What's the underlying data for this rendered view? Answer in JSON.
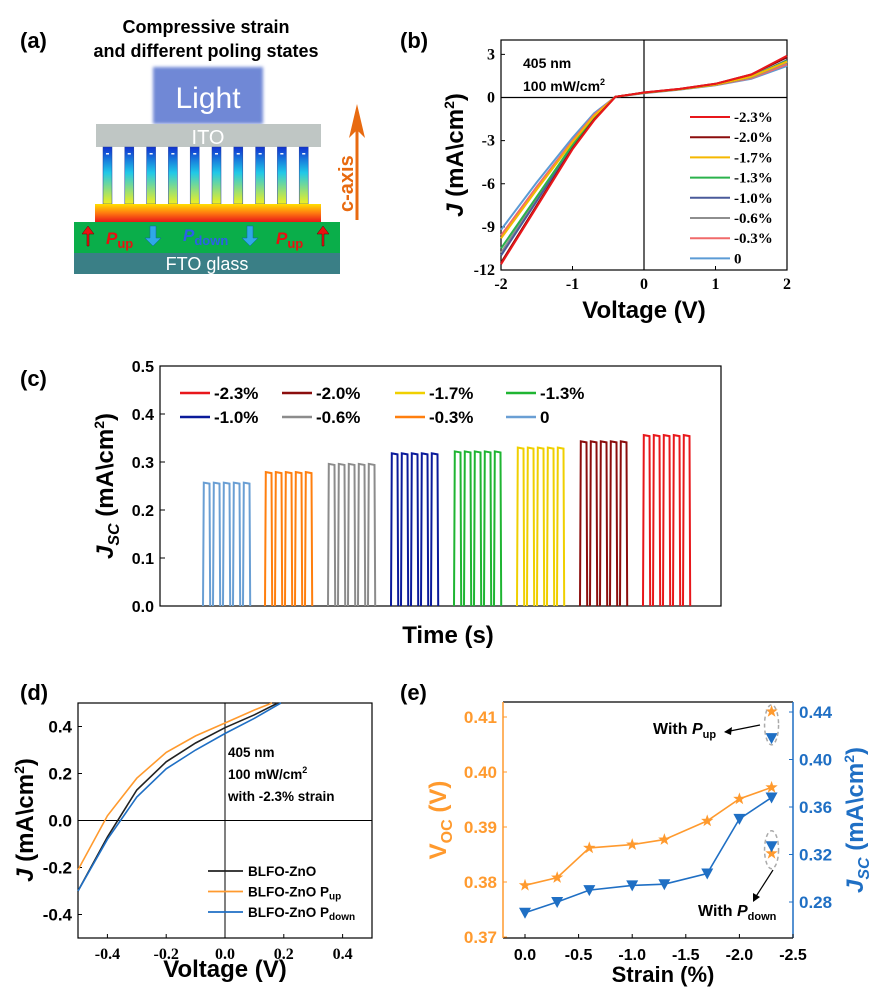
{
  "panel_labels": {
    "a": "(a)",
    "b": "(b)",
    "c": "(c)",
    "d": "(d)",
    "e": "(e)"
  },
  "diagram_a": {
    "title_line1": "Compressive strain",
    "title_line2": "and different poling states",
    "light": "Light",
    "ito": "ITO",
    "fto": "FTO glass",
    "caxis": "c-axis",
    "minus": "-",
    "plus": "+",
    "p": "P",
    "up": "up",
    "down": "down"
  },
  "chart_data": [
    {
      "id": "b",
      "type": "line",
      "xlabel": "Voltage (V)",
      "ylabel_main": "J",
      "ylabel_unit": " (mA\\cm",
      "ylabel_sup": "2",
      "ylabel_close": ")",
      "xlim": [
        -2,
        2
      ],
      "ylim": [
        -12,
        4
      ],
      "xticks": [
        -2,
        -1,
        0,
        1,
        2
      ],
      "yticks": [
        3,
        0,
        -3,
        -6,
        -9,
        -12
      ],
      "annotation": [
        "405 nm",
        "100 mW/cm",
        "2"
      ],
      "x": [
        -2,
        -1.5,
        -1,
        -0.7,
        -0.4,
        0,
        0.5,
        1,
        1.5,
        2
      ],
      "series": [
        {
          "name": "-2.3%",
          "color": "#e8171b",
          "values": [
            -11.6,
            -7.6,
            -3.6,
            -1.6,
            0.05,
            0.35,
            0.6,
            0.95,
            1.6,
            2.9
          ]
        },
        {
          "name": "-2.0%",
          "color": "#8b0d0d",
          "values": [
            -11.5,
            -7.5,
            -3.55,
            -1.55,
            0.05,
            0.35,
            0.6,
            0.95,
            1.6,
            2.8
          ]
        },
        {
          "name": "-1.7%",
          "color": "#f5b800",
          "values": [
            -9.8,
            -6.4,
            -3.1,
            -1.3,
            0.05,
            0.33,
            0.58,
            0.9,
            1.45,
            2.5
          ]
        },
        {
          "name": "-1.3%",
          "color": "#2bb24c",
          "values": [
            -10.5,
            -6.9,
            -3.3,
            -1.4,
            0.05,
            0.33,
            0.58,
            0.9,
            1.45,
            2.55
          ]
        },
        {
          "name": "-1.0%",
          "color": "#4a5a9a",
          "values": [
            -11.0,
            -7.2,
            -3.4,
            -1.45,
            0.05,
            0.33,
            0.58,
            0.9,
            1.45,
            2.6
          ]
        },
        {
          "name": "-0.6%",
          "color": "#8e8e8e",
          "values": [
            -10.8,
            -7.0,
            -3.35,
            -1.4,
            0.05,
            0.32,
            0.57,
            0.88,
            1.4,
            2.45
          ]
        },
        {
          "name": "-0.3%",
          "color": "#f06a6a",
          "values": [
            -9.6,
            -6.2,
            -3.0,
            -1.2,
            0.05,
            0.31,
            0.56,
            0.87,
            1.35,
            2.3
          ]
        },
        {
          "name": "0",
          "color": "#5b9bd5",
          "values": [
            -9.2,
            -5.9,
            -2.8,
            -1.1,
            0.05,
            0.3,
            0.55,
            0.85,
            1.3,
            2.2
          ]
        }
      ]
    },
    {
      "id": "c",
      "type": "line",
      "xlabel": "Time  (s)",
      "ylabel_main": "J",
      "ylabel_sub": "SC",
      "ylabel_unit": " (mA\\cm",
      "ylabel_sup": "2",
      "ylabel_close": ")",
      "ylim": [
        0,
        0.5
      ],
      "yticks": [
        0.0,
        0.1,
        0.2,
        0.3,
        0.4,
        0.5
      ],
      "pulses_per_group": 5,
      "legend": [
        {
          "name": "-2.3%",
          "color": "#e8171b"
        },
        {
          "name": "-2.0%",
          "color": "#8b0d0d"
        },
        {
          "name": "-1.7%",
          "color": "#f0d000"
        },
        {
          "name": "-1.3%",
          "color": "#1fb532"
        },
        {
          "name": "-1.0%",
          "color": "#0a1a9a"
        },
        {
          "name": "-0.6%",
          "color": "#8c8c8c"
        },
        {
          "name": "-0.3%",
          "color": "#ff7f0e"
        },
        {
          "name": "0",
          "color": "#6a9fd4"
        }
      ],
      "groups": [
        {
          "name": "0",
          "color": "#6a9fd4",
          "value": 0.257
        },
        {
          "name": "-0.3%",
          "color": "#ff7f0e",
          "value": 0.279
        },
        {
          "name": "-0.6%",
          "color": "#8c8c8c",
          "value": 0.296
        },
        {
          "name": "-1.0%",
          "color": "#0a1a9a",
          "value": 0.318
        },
        {
          "name": "-1.3%",
          "color": "#1fb532",
          "value": 0.322
        },
        {
          "name": "-1.7%",
          "color": "#f0d000",
          "value": 0.33
        },
        {
          "name": "-2.0%",
          "color": "#8b0d0d",
          "value": 0.343
        },
        {
          "name": "-2.3%",
          "color": "#e8171b",
          "value": 0.356
        }
      ]
    },
    {
      "id": "d",
      "type": "line",
      "xlabel": "Voltage (V)",
      "ylabel_main": "J",
      "ylabel_unit": " (mA\\cm",
      "ylabel_sup": "2",
      "ylabel_close": ")",
      "xlim": [
        -0.5,
        0.5
      ],
      "ylim": [
        -0.5,
        0.5
      ],
      "xticks": [
        -0.4,
        -0.2,
        0.0,
        0.2,
        0.4
      ],
      "yticks": [
        0.4,
        0.2,
        0.0,
        -0.2,
        -0.4
      ],
      "annotation": [
        "405 nm",
        "100 mW/cm",
        "2",
        "with -2.3% strain"
      ],
      "series": [
        {
          "name": "BLFO-ZnO",
          "sub": "",
          "color": "#222222",
          "x": [
            -0.5,
            -0.4,
            -0.3,
            -0.2,
            -0.1,
            0,
            0.1,
            0.18
          ],
          "values": [
            -0.3,
            -0.07,
            0.13,
            0.25,
            0.33,
            0.395,
            0.45,
            0.5
          ]
        },
        {
          "name": "BLFO-ZnO P",
          "sub": "up",
          "color": "#ff9a2e",
          "x": [
            -0.5,
            -0.4,
            -0.3,
            -0.2,
            -0.1,
            0,
            0.1,
            0.16
          ],
          "values": [
            -0.21,
            0.02,
            0.18,
            0.29,
            0.36,
            0.415,
            0.47,
            0.5
          ]
        },
        {
          "name": "BLFO-ZnO P",
          "sub": "down",
          "color": "#1f6fc4",
          "x": [
            -0.5,
            -0.4,
            -0.3,
            -0.2,
            -0.1,
            0,
            0.1,
            0.19
          ],
          "values": [
            -0.3,
            -0.08,
            0.1,
            0.22,
            0.3,
            0.37,
            0.435,
            0.5
          ]
        }
      ]
    },
    {
      "id": "e",
      "type": "line",
      "xlabel": "Strain (%)",
      "ylabel_left": "V",
      "ylabel_left_sub": "OC",
      "ylabel_left_unit": " (V)",
      "ylabel_right": "J",
      "ylabel_right_sub": "SC",
      "ylabel_right_unit": " (mA\\cm",
      "ylabel_right_sup": "2",
      "ylabel_right_close": ")",
      "xlim": [
        0.2,
        -2.5
      ],
      "ylim_left": [
        0.37,
        0.413
      ],
      "ylim_right": [
        0.26,
        0.445
      ],
      "xticks": [
        "0.0",
        "-0.5",
        "-1.0",
        "-1.5",
        "-2.0",
        "-2.5"
      ],
      "yticks_left": [
        "0.37",
        "0.38",
        "0.39",
        "0.40",
        "0.41"
      ],
      "yticks_right": [
        "0.28",
        "0.32",
        "0.36",
        "0.40",
        "0.44"
      ],
      "x": [
        0,
        -0.3,
        -0.6,
        -1.0,
        -1.3,
        -1.7,
        -2.0,
        -2.3
      ],
      "series": [
        {
          "name": "Voc",
          "color": "#ff9a2e",
          "axis": "left",
          "marker": "star",
          "values": [
            0.3794,
            0.3808,
            0.3862,
            0.3868,
            0.3877,
            0.3911,
            0.3951,
            0.3972
          ]
        },
        {
          "name": "Jsc",
          "color": "#1f6fc4",
          "axis": "right",
          "marker": "triangle-down",
          "values": [
            0.271,
            0.28,
            0.29,
            0.294,
            0.295,
            0.304,
            0.35,
            0.368
          ]
        }
      ],
      "poled_points": {
        "strain": -2.3,
        "voc_up": 0.411,
        "jsc_up": 0.418,
        "voc_down": 0.3852,
        "jsc_down": 0.327
      },
      "annotation_up": [
        "With ",
        "P",
        "up"
      ],
      "annotation_down": [
        "With ",
        "P",
        "down"
      ]
    }
  ]
}
